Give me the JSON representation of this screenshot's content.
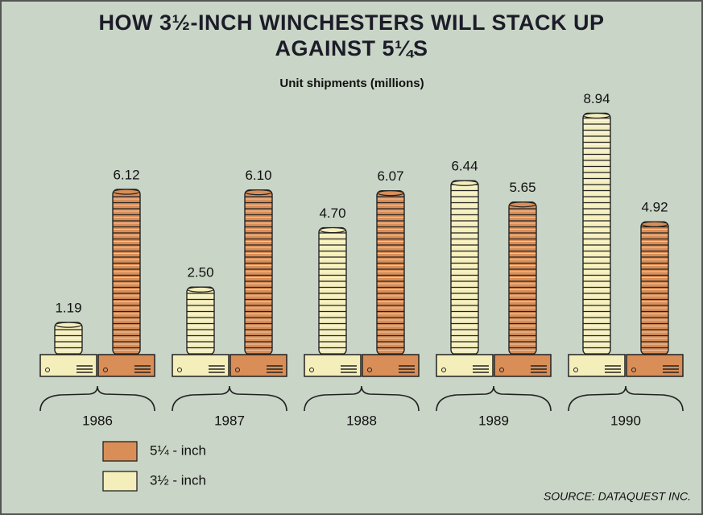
{
  "chart_data": {
    "type": "bar",
    "title": "HOW 3½-INCH WINCHESTERS WILL STACK UP AGAINST 5¼S",
    "subtitle": "Unit shipments (millions)",
    "source": "SOURCE: DATAQUEST INC.",
    "categories": [
      "1986",
      "1987",
      "1988",
      "1989",
      "1990"
    ],
    "series": [
      {
        "name": "3½ - inch",
        "color": "#f4eebb",
        "values": [
          1.19,
          2.5,
          4.7,
          6.44,
          8.94
        ],
        "value_labels": [
          "1.19",
          "2.50",
          "4.70",
          "6.44",
          "8.94"
        ]
      },
      {
        "name": "5¼ - inch",
        "color": "#d98e57",
        "values": [
          6.12,
          6.1,
          6.07,
          5.65,
          4.92
        ],
        "value_labels": [
          "6.12",
          "6.10",
          "6.07",
          "5.65",
          "4.92"
        ]
      }
    ]
  }
}
